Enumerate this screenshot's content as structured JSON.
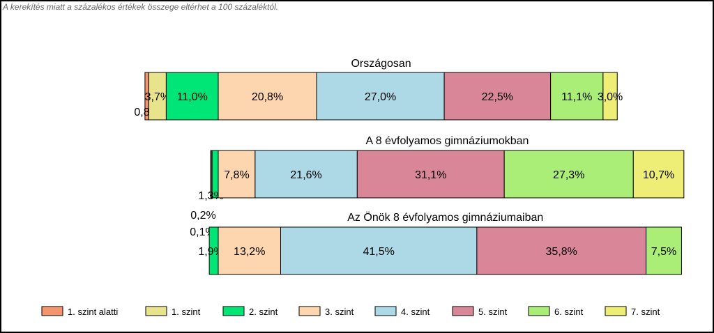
{
  "note": "A kerekítés miatt a  százalékos értékek összege eltérhet a 100 százaléktól.",
  "chart_data": {
    "type": "bar",
    "orientation": "horizontal-stacked-diverging",
    "categories": [
      "1. szint alatti",
      "1. szint",
      "2. szint",
      "3. szint",
      "4. szint",
      "5. szint",
      "6. szint",
      "7. szint"
    ],
    "colors": [
      "#F4956E",
      "#E8E48C",
      "#00E676",
      "#FDD5AE",
      "#ADD8E6",
      "#D98699",
      "#AAEE77",
      "#EEEE77"
    ],
    "series": [
      {
        "name": "Országosan",
        "values": [
          0.8,
          3.7,
          11.0,
          20.8,
          27.0,
          22.5,
          11.1,
          3.0
        ],
        "labels": [
          "0,8%",
          "3,7%",
          "11,0%",
          "20,8%",
          "27,0%",
          "22,5%",
          "11,1%",
          "3,0%"
        ]
      },
      {
        "name": "A 8 évfolyamos gimnáziumokban",
        "values": [
          0.1,
          0.2,
          1.3,
          7.8,
          21.6,
          31.1,
          27.3,
          10.7
        ],
        "labels": [
          "0,1%",
          "0,2%",
          "1,3%",
          "7,8%",
          "21,6%",
          "31,1%",
          "27,3%",
          "10,7%"
        ]
      },
      {
        "name": "Az Önök 8 évfolyamos gimnáziumaiban",
        "values": [
          0,
          0,
          1.9,
          13.2,
          41.5,
          35.8,
          7.5,
          0
        ],
        "labels": [
          "",
          "",
          "1,9%",
          "13,2%",
          "41,5%",
          "35,8%",
          "7,5%",
          ""
        ]
      }
    ],
    "legend_position": "bottom",
    "grid": false
  }
}
